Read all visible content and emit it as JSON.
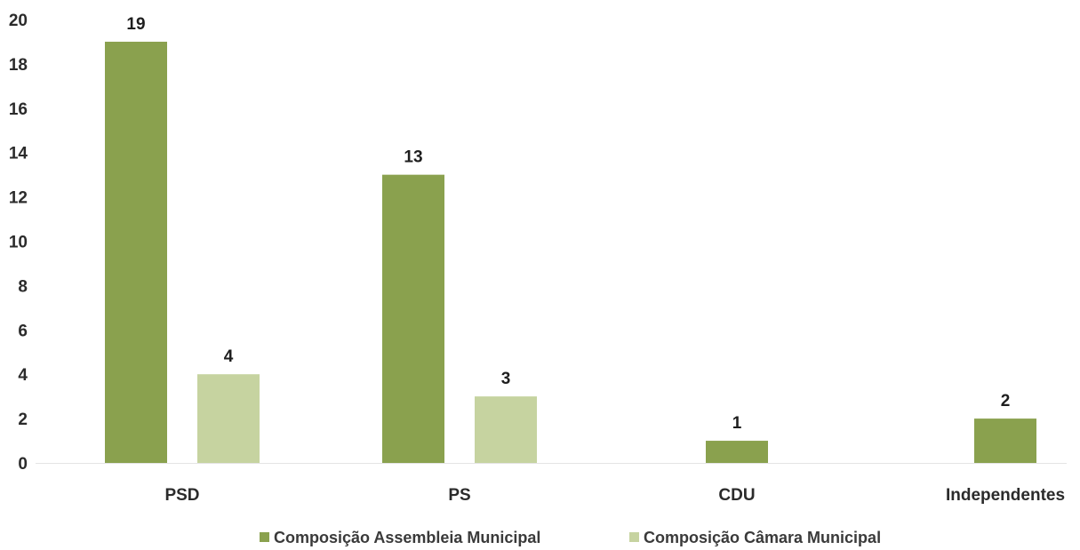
{
  "chart_data": {
    "type": "bar",
    "categories": [
      "PSD",
      "PS",
      "CDU",
      "Independentes"
    ],
    "series": [
      {
        "name": "Composição Assembleia Municipal",
        "values": [
          19,
          13,
          1,
          2
        ],
        "color": "#8aa14e"
      },
      {
        "name": "Composição Câmara Municipal",
        "values": [
          4,
          3,
          null,
          null
        ],
        "color": "#c6d3a0"
      }
    ],
    "ylim": [
      0,
      20
    ],
    "yticks": [
      0,
      2,
      4,
      6,
      8,
      10,
      12,
      14,
      16,
      18,
      20
    ],
    "grid": false,
    "legend_position": "bottom"
  }
}
